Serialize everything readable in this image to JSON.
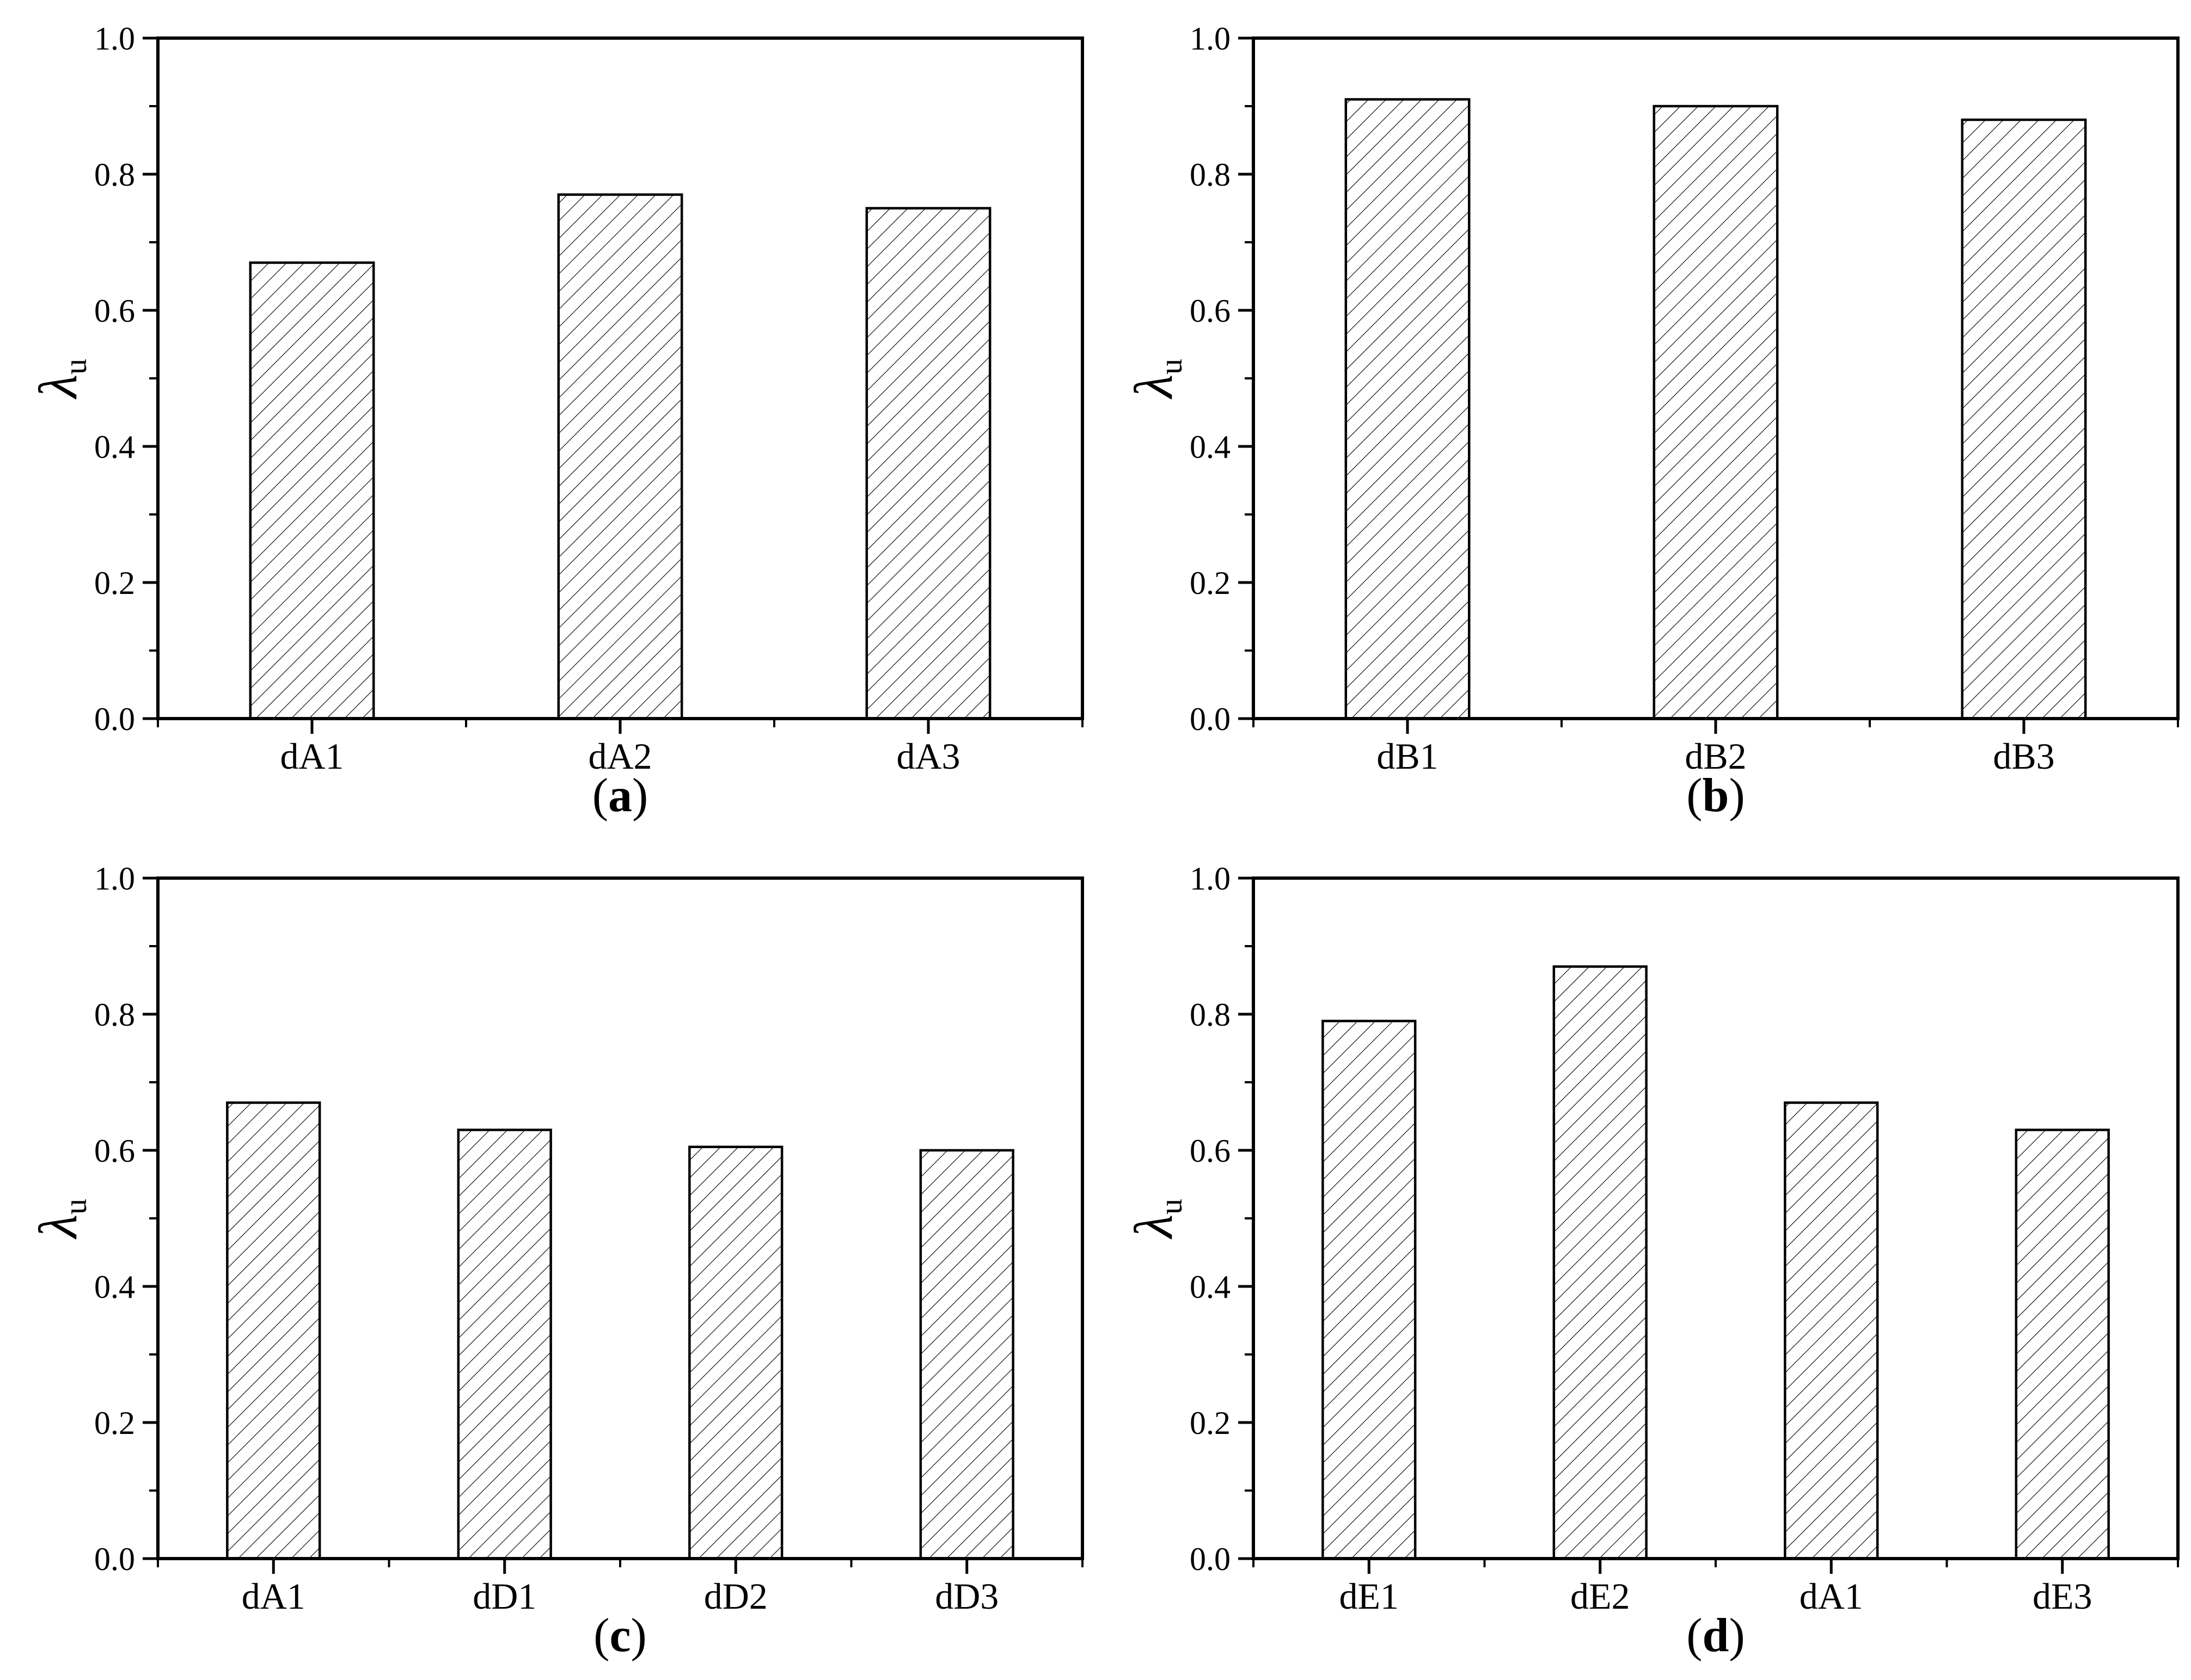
{
  "figure": {
    "background": "#ffffff",
    "ink": "#000000",
    "bar_fill": "#ffffff",
    "hatch_pattern": "forward-diagonal-45deg"
  },
  "chart_data": [
    {
      "type": "bar",
      "panel": "a",
      "caption_open": "(",
      "caption_letter": "a",
      "caption_close": ")",
      "categories": [
        "dA1",
        "dA2",
        "dA3"
      ],
      "values": [
        0.67,
        0.77,
        0.75
      ],
      "ylabel": "λu",
      "ylabel_main": "λ",
      "ylabel_sub": "u",
      "ylim": [
        0.0,
        1.0
      ],
      "ytick_step": 0.2,
      "yminor_step": 0.1,
      "ytick_labels": [
        "0.0",
        "0.2",
        "0.4",
        "0.6",
        "0.8",
        "1.0"
      ],
      "grid": false,
      "legend": false
    },
    {
      "type": "bar",
      "panel": "b",
      "caption_open": "(",
      "caption_letter": "b",
      "caption_close": ")",
      "categories": [
        "dB1",
        "dB2",
        "dB3"
      ],
      "values": [
        0.91,
        0.9,
        0.88
      ],
      "ylabel": "λu",
      "ylabel_main": "λ",
      "ylabel_sub": "u",
      "ylim": [
        0.0,
        1.0
      ],
      "ytick_step": 0.2,
      "yminor_step": 0.1,
      "ytick_labels": [
        "0.0",
        "0.2",
        "0.4",
        "0.6",
        "0.8",
        "1.0"
      ],
      "grid": false,
      "legend": false
    },
    {
      "type": "bar",
      "panel": "c",
      "caption_open": "(",
      "caption_letter": "c",
      "caption_close": ")",
      "categories": [
        "dA1",
        "dD1",
        "dD2",
        "dD3"
      ],
      "values": [
        0.67,
        0.63,
        0.605,
        0.6
      ],
      "ylabel": "λu",
      "ylabel_main": "λ",
      "ylabel_sub": "u",
      "ylim": [
        0.0,
        1.0
      ],
      "ytick_step": 0.2,
      "yminor_step": 0.1,
      "ytick_labels": [
        "0.0",
        "0.2",
        "0.4",
        "0.6",
        "0.8",
        "1.0"
      ],
      "grid": false,
      "legend": false
    },
    {
      "type": "bar",
      "panel": "d",
      "caption_open": "(",
      "caption_letter": "d",
      "caption_close": ")",
      "categories": [
        "dE1",
        "dE2",
        "dA1",
        "dE3"
      ],
      "values": [
        0.79,
        0.87,
        0.67,
        0.63
      ],
      "ylabel": "λu",
      "ylabel_main": "λ",
      "ylabel_sub": "u",
      "ylim": [
        0.0,
        1.0
      ],
      "ytick_step": 0.2,
      "yminor_step": 0.1,
      "ytick_labels": [
        "0.0",
        "0.2",
        "0.4",
        "0.6",
        "0.8",
        "1.0"
      ],
      "grid": false,
      "legend": false
    }
  ]
}
